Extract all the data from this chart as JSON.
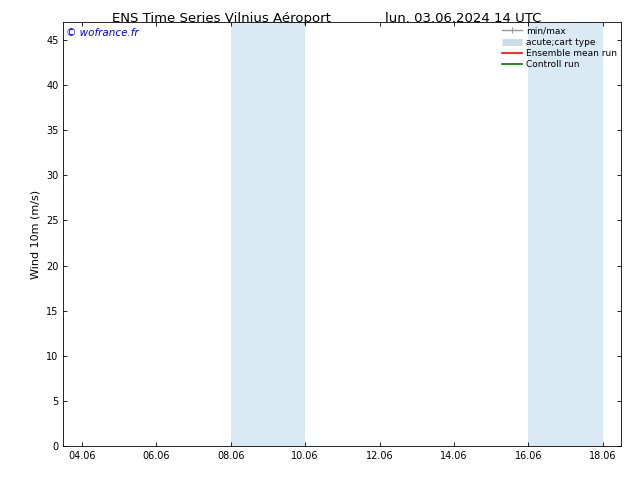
{
  "title_left": "ENS Time Series Vilnius Aéroport",
  "title_right": "lun. 03.06.2024 14 UTC",
  "ylabel": "Wind 10m (m/s)",
  "watermark": "© wofrance.fr",
  "x_ticks": [
    "04.06",
    "06.06",
    "08.06",
    "10.06",
    "12.06",
    "14.06",
    "16.06",
    "18.06"
  ],
  "x_tick_positions": [
    0,
    2,
    4,
    6,
    8,
    10,
    12,
    14
  ],
  "x_min": -0.5,
  "x_max": 14.5,
  "y_min": 0,
  "y_max": 47,
  "y_ticks": [
    0,
    5,
    10,
    15,
    20,
    25,
    30,
    35,
    40,
    45
  ],
  "shaded_bands": [
    {
      "x_start": 4.0,
      "x_end": 6.0
    },
    {
      "x_start": 12.0,
      "x_end": 14.0
    }
  ],
  "shaded_color": "#daeaf5",
  "background_color": "#ffffff",
  "legend_items": [
    {
      "label": "min/max",
      "color": "#999999",
      "lw": 1.0,
      "type": "caps"
    },
    {
      "label": "acute;cart type",
      "color": "#c8dcea",
      "lw": 5,
      "type": "thick"
    },
    {
      "label": "Ensemble mean run",
      "color": "#ff0000",
      "lw": 1.2,
      "type": "line"
    },
    {
      "label": "Controll run",
      "color": "#007700",
      "lw": 1.2,
      "type": "line"
    }
  ],
  "title_fontsize": 9.5,
  "tick_fontsize": 7,
  "label_fontsize": 8,
  "watermark_fontsize": 7.5,
  "legend_fontsize": 6.5
}
